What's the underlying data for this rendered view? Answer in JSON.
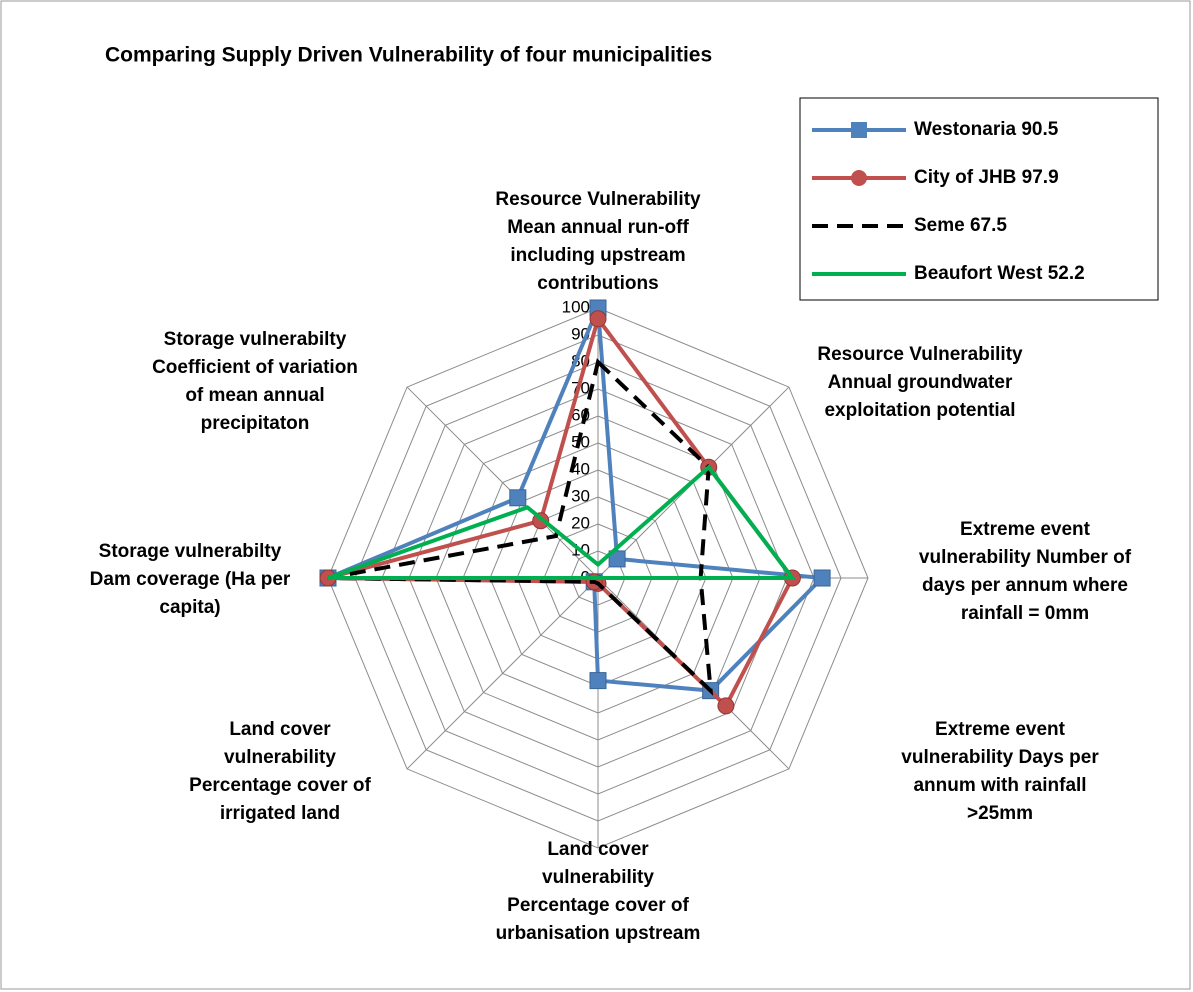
{
  "chart_data": {
    "type": "radar",
    "title": "Comparing  Supply  Driven Vulnerability of four municipalities",
    "categories": [
      [
        "Resource Vulnerability",
        "Mean annual run-off",
        "including upstream",
        "contributions"
      ],
      [
        "Resource Vulnerability",
        "Annual groundwater",
        "exploitation potential"
      ],
      [
        "Extreme event",
        "vulnerability Number of",
        "days per annum where",
        "rainfall = 0mm"
      ],
      [
        "Extreme event",
        "vulnerability Days per",
        "annum with rainfall",
        ">25mm"
      ],
      [
        "Land cover",
        "vulnerability",
        "Percentage cover of",
        "urbanisation upstream"
      ],
      [
        "Land cover",
        "vulnerability",
        "Percentage cover of",
        "irrigated land"
      ],
      [
        "Storage vulnerabilty",
        "Dam coverage (Ha per",
        "capita)"
      ],
      [
        "Storage vulnerabilty",
        "Coefficient of variation",
        "of mean annual",
        "precipitaton"
      ]
    ],
    "series": [
      {
        "name": "Westonaria 90.5",
        "color": "#4f81bd",
        "marker": "square",
        "values": [
          100,
          10,
          83,
          59,
          38,
          2,
          100,
          42
        ]
      },
      {
        "name": "City of JHB 97.9",
        "color": "#c0504d",
        "marker": "circle",
        "values": [
          96,
          58,
          72,
          67,
          2,
          2,
          100,
          30
        ]
      },
      {
        "name": "Seme 67.5",
        "color": "#000000",
        "dash": true,
        "values": [
          80,
          58,
          38,
          59,
          2,
          2,
          100,
          22
        ]
      },
      {
        "name": "Beaufort West  52.2",
        "color": "#00b050",
        "values": [
          5,
          58,
          72,
          0,
          0,
          0,
          100,
          37
        ]
      }
    ],
    "rlim": [
      0,
      100
    ],
    "rticks": [
      0,
      10,
      20,
      30,
      40,
      50,
      60,
      70,
      80,
      90,
      100
    ],
    "grid": true,
    "legend": "upper right"
  }
}
